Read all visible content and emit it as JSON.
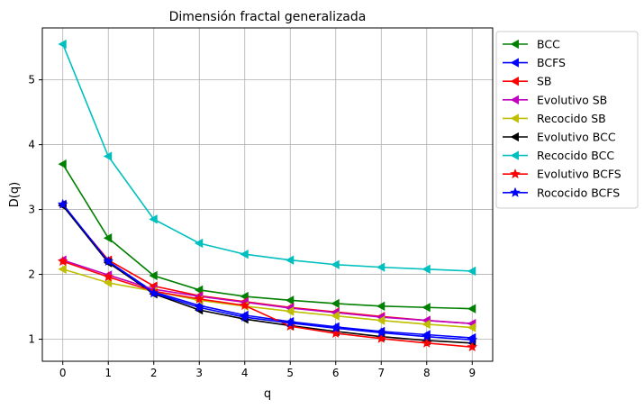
{
  "chart_data": {
    "type": "line",
    "title": "Dimensión fractal generalizada",
    "xlabel": "q",
    "ylabel": "D(q)",
    "x": [
      0,
      1,
      2,
      3,
      4,
      5,
      6,
      7,
      8,
      9
    ],
    "xticks": [
      "0",
      "1",
      "2",
      "3",
      "4",
      "5",
      "6",
      "7",
      "8",
      "9"
    ],
    "yticks": [
      "1",
      "2",
      "3",
      "4",
      "5"
    ],
    "xlim": [
      -0.45,
      9.45
    ],
    "ylim": [
      0.66,
      5.8
    ],
    "grid": true,
    "legend_position": "outside-right",
    "series": [
      {
        "name": "BCC",
        "color": "#008000",
        "marker": "triangle-left",
        "values": [
          3.7,
          2.56,
          1.98,
          1.76,
          1.66,
          1.6,
          1.55,
          1.51,
          1.49,
          1.47
        ]
      },
      {
        "name": "BCFS",
        "color": "#0000ff",
        "marker": "triangle-left",
        "values": [
          3.08,
          2.2,
          1.73,
          1.52,
          1.37,
          1.27,
          1.19,
          1.12,
          1.07,
          1.02
        ]
      },
      {
        "name": "SB",
        "color": "#ff0000",
        "marker": "triangle-left",
        "values": [
          3.06,
          2.22,
          1.82,
          1.67,
          1.58,
          1.49,
          1.42,
          1.35,
          1.29,
          1.24
        ]
      },
      {
        "name": "Evolutivo SB",
        "color": "#bf00bf",
        "marker": "triangle-left",
        "values": [
          2.22,
          1.99,
          1.77,
          1.66,
          1.57,
          1.48,
          1.41,
          1.34,
          1.29,
          1.24
        ]
      },
      {
        "name": "Recocido SB",
        "color": "#bfbf00",
        "marker": "triangle-left",
        "values": [
          2.08,
          1.87,
          1.74,
          1.6,
          1.51,
          1.43,
          1.36,
          1.29,
          1.23,
          1.18
        ]
      },
      {
        "name": "Evolutivo BCC",
        "color": "#000000",
        "marker": "triangle-left",
        "values": [
          3.06,
          2.18,
          1.7,
          1.45,
          1.31,
          1.21,
          1.12,
          1.04,
          0.98,
          0.94
        ]
      },
      {
        "name": "Recocido BCC",
        "color": "#00bfbf",
        "marker": "triangle-left",
        "values": [
          5.55,
          3.82,
          2.85,
          2.48,
          2.31,
          2.22,
          2.15,
          2.11,
          2.08,
          2.05
        ]
      },
      {
        "name": "Evolutivo BCFS",
        "color": "#ff0000",
        "marker": "star",
        "values": [
          2.2,
          1.96,
          1.74,
          1.62,
          1.52,
          1.2,
          1.09,
          1.01,
          0.94,
          0.88
        ]
      },
      {
        "name": "Rococido BCFS",
        "color": "#0000ff",
        "marker": "star",
        "values": [
          3.08,
          2.2,
          1.71,
          1.49,
          1.34,
          1.25,
          1.17,
          1.1,
          1.04,
          0.99
        ]
      }
    ]
  }
}
